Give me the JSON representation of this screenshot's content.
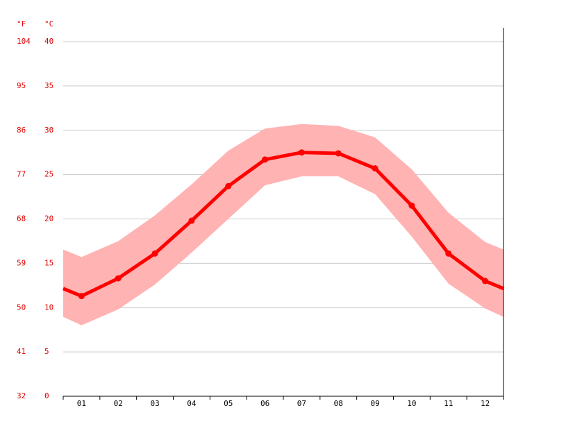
{
  "chart_data": {
    "type": "line",
    "categories": [
      "01",
      "02",
      "03",
      "04",
      "05",
      "06",
      "07",
      "08",
      "09",
      "10",
      "11",
      "12"
    ],
    "series": [
      {
        "color": "#ff0000",
        "values": [
          11.3,
          13.3,
          16.1,
          19.8,
          23.7,
          26.7,
          27.5,
          27.4,
          25.7,
          21.5,
          16.1,
          13.0
        ]
      }
    ],
    "range": {
      "color": "#ffb3b3",
      "high": [
        15.7,
        17.5,
        20.4,
        23.9,
        27.7,
        30.2,
        30.7,
        30.5,
        29.2,
        25.6,
        20.7,
        17.4
      ],
      "low": [
        8.0,
        9.8,
        12.6,
        16.2,
        20.0,
        23.8,
        24.8,
        24.8,
        22.8,
        18.0,
        12.7,
        9.9
      ]
    },
    "y_label": "°C",
    "y2_label": "°F",
    "ylim": [
      0,
      40
    ],
    "yticks": [
      0,
      5,
      10,
      15,
      20,
      25,
      30,
      35,
      40
    ],
    "y2lim": [
      32,
      104
    ],
    "y2ticks": [
      32,
      41,
      50,
      59,
      68,
      77,
      86,
      95,
      104
    ],
    "grid": true
  }
}
